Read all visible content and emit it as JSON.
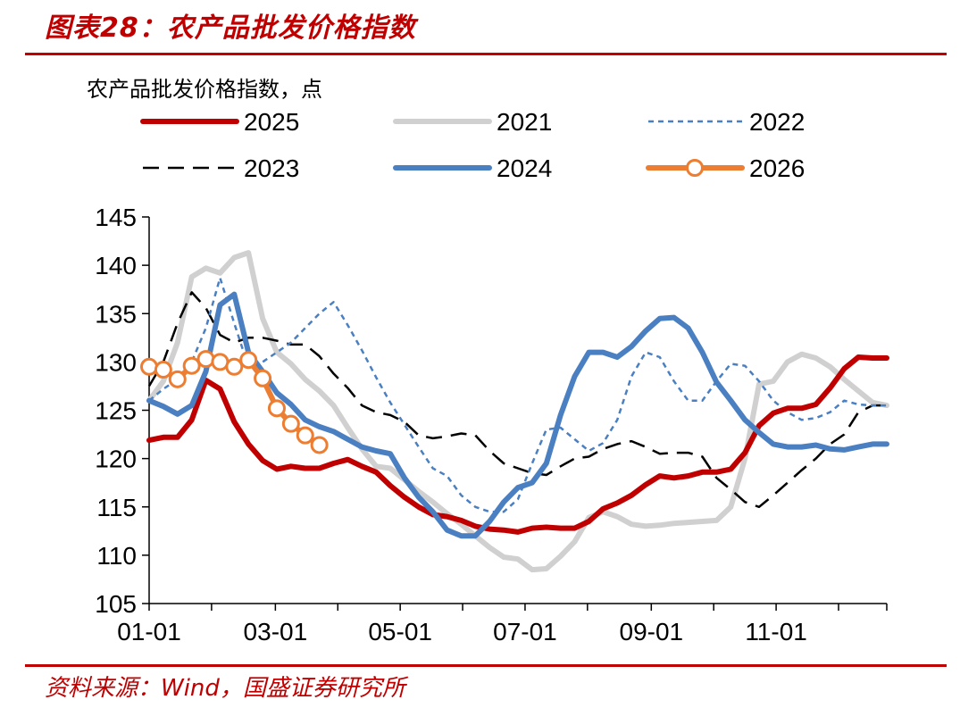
{
  "header": {
    "title": "图表28：农产品批发价格指数"
  },
  "footer": {
    "source": "资料来源：Wind，国盛证券研究所"
  },
  "chart_data": {
    "type": "line",
    "ylabel": "农产品批发价格指数，点",
    "ylim": [
      105,
      145
    ],
    "yticks": [
      "105",
      "110",
      "115",
      "120",
      "125",
      "130",
      "135",
      "140",
      "145"
    ],
    "xticks": [
      "01-01",
      "03-01",
      "05-01",
      "07-01",
      "09-01",
      "11-01"
    ],
    "x_unit": "week of year",
    "x_range": [
      1,
      53
    ],
    "legend_position": "top",
    "series": [
      {
        "name": "2025",
        "color": "#C00000",
        "style": "solid-thick",
        "x": [
          1,
          2,
          3,
          4,
          5,
          6,
          7,
          8,
          9,
          10,
          11,
          12,
          13,
          14,
          15,
          16,
          17,
          18,
          19,
          20,
          21,
          22,
          23,
          24,
          25,
          26,
          27,
          28,
          29,
          30,
          31,
          32,
          33,
          34,
          35,
          36,
          37,
          38,
          39,
          40,
          41,
          42,
          43,
          44,
          45,
          46,
          47,
          48,
          49,
          50,
          51,
          52,
          53
        ],
        "values": [
          121.9,
          122.2,
          122.2,
          124.0,
          128.1,
          127.2,
          123.8,
          121.5,
          119.8,
          118.9,
          119.2,
          119.0,
          119.0,
          119.5,
          119.9,
          119.2,
          118.6,
          117.2,
          116.0,
          115.0,
          114.2,
          114.0,
          113.6,
          113.0,
          112.7,
          112.6,
          112.4,
          112.8,
          112.9,
          112.8,
          112.8,
          113.5,
          114.8,
          115.4,
          116.2,
          117.3,
          118.2,
          118.0,
          118.2,
          118.6,
          118.6,
          118.9,
          120.6,
          123.4,
          124.7,
          125.2,
          125.2,
          125.6,
          127.3,
          129.3,
          130.5,
          130.4,
          130.4
        ]
      },
      {
        "name": "2021",
        "color": "#D0D0D0",
        "style": "solid-thick",
        "x": [
          1,
          2,
          3,
          4,
          5,
          6,
          7,
          8,
          9,
          10,
          11,
          12,
          13,
          14,
          15,
          16,
          17,
          18,
          19,
          20,
          21,
          22,
          23,
          24,
          25,
          26,
          27,
          28,
          29,
          30,
          31,
          32,
          33,
          34,
          35,
          36,
          37,
          38,
          39,
          40,
          41,
          42,
          43,
          44,
          45,
          46,
          47,
          48,
          49,
          50,
          51,
          52,
          53
        ],
        "values": [
          126.0,
          128.0,
          132.0,
          138.8,
          139.7,
          139.2,
          140.8,
          141.3,
          134.5,
          131.0,
          129.8,
          128.2,
          127.0,
          125.5,
          123.2,
          121.0,
          119.2,
          119.0,
          117.8,
          116.6,
          115.5,
          114.3,
          113.2,
          112.0,
          110.8,
          109.8,
          109.6,
          108.5,
          108.6,
          109.9,
          111.4,
          113.9,
          114.5,
          114.0,
          113.2,
          113.0,
          113.1,
          113.3,
          113.4,
          113.5,
          113.6,
          115.0,
          120.0,
          127.7,
          128.0,
          130.0,
          130.8,
          130.4,
          129.5,
          128.2,
          127.0,
          125.8,
          125.5
        ]
      },
      {
        "name": "2022",
        "color": "#4A7FC1",
        "style": "dotted",
        "x": [
          1,
          2,
          3,
          4,
          5,
          6,
          7,
          8,
          9,
          10,
          11,
          12,
          13,
          14,
          15,
          16,
          17,
          18,
          19,
          20,
          21,
          22,
          23,
          24,
          25,
          26,
          27,
          28,
          29,
          30,
          31,
          32,
          33,
          34,
          35,
          36,
          37,
          38,
          39,
          40,
          41,
          42,
          43,
          44,
          45,
          46,
          47,
          48,
          49,
          50,
          51,
          52,
          53
        ],
        "values": [
          126.0,
          127.2,
          128.2,
          130.0,
          133.5,
          138.7,
          134.0,
          129.5,
          130.0,
          131.0,
          132.0,
          133.5,
          135.0,
          136.2,
          133.8,
          131.2,
          128.4,
          125.8,
          123.5,
          121.2,
          119.0,
          118.2,
          116.2,
          115.0,
          114.5,
          114.5,
          115.8,
          119.5,
          123.0,
          123.2,
          122.0,
          120.8,
          121.6,
          124.0,
          128.5,
          131.0,
          130.5,
          128.0,
          126.0,
          126.0,
          128.0,
          129.8,
          129.6,
          128.0,
          126.0,
          124.8,
          124.0,
          124.2,
          124.8,
          126.0,
          125.6,
          125.5,
          125.5
        ]
      },
      {
        "name": "2023",
        "color": "#000000",
        "style": "dashed",
        "x": [
          1,
          2,
          3,
          4,
          5,
          6,
          7,
          8,
          9,
          10,
          11,
          12,
          13,
          14,
          15,
          16,
          17,
          18,
          19,
          20,
          21,
          22,
          23,
          24,
          25,
          26,
          27,
          28,
          29,
          30,
          31,
          32,
          33,
          34,
          35,
          36,
          37,
          38,
          39,
          40,
          41,
          42,
          43,
          44,
          45,
          46,
          47,
          48,
          49,
          50,
          51,
          52,
          53
        ],
        "values": [
          127.5,
          130.0,
          134.0,
          137.2,
          135.6,
          132.8,
          132.0,
          132.5,
          132.5,
          132.2,
          131.8,
          131.8,
          130.6,
          128.8,
          127.3,
          125.5,
          124.8,
          124.5,
          123.8,
          122.4,
          122.1,
          122.3,
          122.6,
          122.4,
          120.8,
          119.5,
          119.0,
          118.5,
          118.3,
          119.2,
          120.0,
          120.2,
          121.0,
          121.5,
          121.8,
          121.2,
          120.5,
          120.6,
          120.6,
          120.2,
          118.0,
          116.8,
          115.5,
          115.0,
          116.2,
          117.5,
          118.8,
          120.0,
          121.5,
          122.5,
          124.8,
          125.5,
          125.5
        ]
      },
      {
        "name": "2024",
        "color": "#4A7FC1",
        "style": "solid-thick",
        "x": [
          1,
          2,
          3,
          4,
          5,
          6,
          7,
          8,
          9,
          10,
          11,
          12,
          13,
          14,
          15,
          16,
          17,
          18,
          19,
          20,
          21,
          22,
          23,
          24,
          25,
          26,
          27,
          28,
          29,
          30,
          31,
          32,
          33,
          34,
          35,
          36,
          37,
          38,
          39,
          40,
          41,
          42,
          43,
          44,
          45,
          46,
          47,
          48,
          49,
          50,
          51,
          52,
          53
        ],
        "values": [
          126.0,
          125.4,
          124.6,
          125.5,
          129.0,
          135.9,
          137.0,
          131.0,
          129.0,
          126.8,
          125.6,
          124.0,
          123.3,
          122.8,
          122.0,
          121.2,
          120.8,
          120.5,
          118.0,
          116.0,
          114.5,
          112.6,
          112.0,
          112.0,
          113.5,
          115.5,
          117.0,
          117.5,
          119.5,
          124.5,
          128.5,
          131.0,
          131.0,
          130.5,
          131.6,
          133.2,
          134.5,
          134.6,
          133.5,
          131.0,
          127.9,
          126.0,
          124.0,
          122.7,
          121.5,
          121.2,
          121.2,
          121.4,
          121.0,
          120.9,
          121.2,
          121.5,
          121.5
        ]
      },
      {
        "name": "2026",
        "color": "#ED7D31",
        "style": "solid-markers",
        "x": [
          1,
          2,
          3,
          4,
          5,
          6,
          7,
          8,
          9,
          10,
          11,
          12,
          13
        ],
        "values": [
          129.5,
          129.2,
          128.2,
          129.6,
          130.3,
          130.0,
          129.5,
          130.2,
          128.3,
          125.2,
          123.6,
          122.4,
          121.4
        ]
      }
    ]
  }
}
